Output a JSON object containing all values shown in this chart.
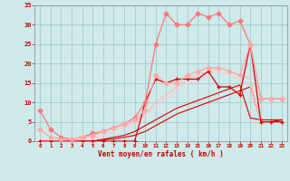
{
  "x": [
    0,
    1,
    2,
    3,
    4,
    5,
    6,
    7,
    8,
    9,
    10,
    11,
    12,
    13,
    14,
    15,
    16,
    17,
    18,
    19,
    20,
    21,
    22,
    23
  ],
  "series": [
    {
      "color": "#dd0000",
      "linewidth": 0.9,
      "marker": "+",
      "markersize": 3,
      "y": [
        0,
        0,
        0,
        0,
        0,
        0,
        0,
        0,
        0,
        0,
        10,
        16,
        15,
        16,
        16,
        16,
        18,
        14,
        14,
        12,
        25,
        5,
        5,
        5
      ]
    },
    {
      "color": "#dd0000",
      "linewidth": 0.8,
      "marker": null,
      "markersize": 0,
      "y": [
        0,
        0,
        0,
        0,
        0,
        0,
        0.3,
        0.6,
        1,
        1.5,
        2.5,
        4,
        5.5,
        7,
        8,
        9,
        10,
        11,
        12,
        13,
        14,
        5,
        5,
        5.5
      ]
    },
    {
      "color": "#dd0000",
      "linewidth": 0.8,
      "marker": null,
      "markersize": 0,
      "y": [
        0,
        0,
        0,
        0,
        0,
        0,
        0.5,
        1,
        1.5,
        2.5,
        4,
        5.5,
        7,
        8.5,
        9.5,
        10.5,
        11.5,
        12.5,
        13.5,
        14.5,
        6,
        5.5,
        5.5,
        5.5
      ]
    },
    {
      "color": "#ff7777",
      "linewidth": 0.9,
      "marker": "D",
      "markersize": 2.5,
      "y": [
        8,
        3,
        1,
        0.5,
        1,
        2,
        2.5,
        3.5,
        4.5,
        6,
        10,
        25,
        33,
        30,
        30,
        33,
        32,
        33,
        30,
        31,
        25,
        11,
        11,
        11
      ]
    },
    {
      "color": "#ffaaaa",
      "linewidth": 0.9,
      "marker": "D",
      "markersize": 2.5,
      "y": [
        3,
        1,
        0.5,
        0.5,
        1,
        1.5,
        2.5,
        3.5,
        4.5,
        5.5,
        8,
        17,
        15,
        15,
        17,
        18,
        19,
        19,
        18,
        17,
        25,
        11,
        11,
        11
      ]
    },
    {
      "color": "#ffbbbb",
      "linewidth": 0.8,
      "marker": null,
      "markersize": 0,
      "y": [
        0,
        0,
        0,
        0.5,
        1,
        1.5,
        2.5,
        3.5,
        4,
        5,
        7,
        10,
        12,
        14,
        16,
        17,
        18,
        19,
        18,
        17,
        16,
        5,
        5,
        5
      ]
    },
    {
      "color": "#ffcccc",
      "linewidth": 0.8,
      "marker": null,
      "markersize": 0,
      "y": [
        0,
        0,
        0,
        0,
        0.5,
        1,
        1.5,
        2.5,
        3.5,
        4.5,
        6.5,
        9,
        11,
        13,
        15,
        16,
        17,
        18,
        17,
        16,
        14,
        5,
        5,
        5
      ]
    }
  ],
  "bg_color": "#ceeaea",
  "grid_color": "#aacccc",
  "text_color": "#cc0000",
  "xlabel": "Vent moyen/en rafales ( km/h )",
  "ylim": [
    0,
    35
  ],
  "xlim": [
    -0.5,
    23.5
  ],
  "yticks": [
    0,
    5,
    10,
    15,
    20,
    25,
    30,
    35
  ],
  "xticks": [
    0,
    1,
    2,
    3,
    4,
    5,
    6,
    7,
    8,
    9,
    10,
    11,
    12,
    13,
    14,
    15,
    16,
    17,
    18,
    19,
    20,
    21,
    22,
    23
  ]
}
